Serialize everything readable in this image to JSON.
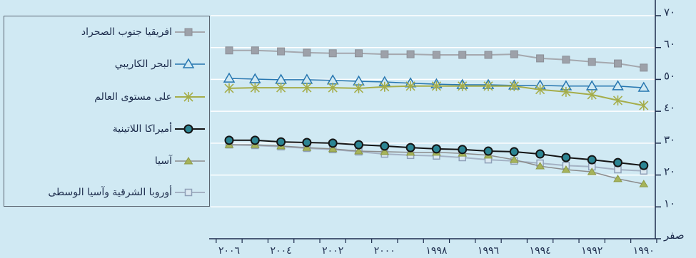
{
  "chart_data": {
    "type": "line",
    "x": [
      2006,
      2005,
      2004,
      2003,
      2002,
      2001,
      2000,
      1999,
      1998,
      1997,
      1996,
      1995,
      1994,
      1993,
      1992,
      1991,
      1990
    ],
    "x_reversed": true,
    "x_tick_labels": [
      {
        "year": 2006,
        "label": "٢٠٠٦"
      },
      {
        "year": 2004,
        "label": "٢٠٠٤"
      },
      {
        "year": 2002,
        "label": "٢٠٠٢"
      },
      {
        "year": 2000,
        "label": "٢٠٠٠"
      },
      {
        "year": 1998,
        "label": "١٩٩٨"
      },
      {
        "year": 1996,
        "label": "١٩٩٦"
      },
      {
        "year": 1994,
        "label": "١٩٩٤"
      },
      {
        "year": 1992,
        "label": "١٩٩٢"
      },
      {
        "year": 1990,
        "label": "١٩٩٠"
      }
    ],
    "ylim": [
      0,
      70
    ],
    "y_ticks": [
      {
        "value": 70,
        "label": "٧٠"
      },
      {
        "value": 60,
        "label": "٦٠"
      },
      {
        "value": 50,
        "label": "٥٠"
      },
      {
        "value": 40,
        "label": "٤٠"
      },
      {
        "value": 30,
        "label": "٣٠"
      },
      {
        "value": 20,
        "label": "٢٠"
      },
      {
        "value": 10,
        "label": "١٠"
      },
      {
        "value": 0,
        "label": "صفر"
      }
    ],
    "grid": true,
    "legend": "left",
    "series": [
      {
        "name": "افريقيا جنوب الصحراد",
        "marker": "square-filled",
        "line_color": "#a5a8ae",
        "marker_fill": "#9da1a9",
        "marker_stroke": "#8b8f97",
        "values": [
          59.1,
          59.1,
          58.8,
          58.4,
          58.2,
          58.2,
          57.9,
          57.9,
          57.7,
          57.7,
          57.7,
          57.9,
          56.6,
          56.2,
          55.5,
          55.0,
          53.7
        ]
      },
      {
        "name": "البحر الكاريبي",
        "marker": "triangle-open",
        "line_color": "#2676b0",
        "marker_fill": "#d0e9f3",
        "marker_stroke": "#2676b0",
        "values": [
          50.3,
          50.1,
          49.9,
          49.9,
          49.7,
          49.4,
          49.2,
          48.8,
          48.5,
          48.3,
          48.3,
          48.1,
          48.1,
          47.9,
          47.9,
          47.9,
          47.4
        ]
      },
      {
        "name": "على مستوى العالم",
        "marker": "asterisk",
        "line_color": "#a5ad4a",
        "marker_fill": "#a5ad4a",
        "marker_stroke": "#a5ad4a",
        "values": [
          47.2,
          47.4,
          47.4,
          47.4,
          47.4,
          47.2,
          47.7,
          47.9,
          47.9,
          47.9,
          47.9,
          47.9,
          46.8,
          46.1,
          45.2,
          43.4,
          41.8
        ]
      },
      {
        "name": "أميراكا اللاتينية",
        "marker": "circle",
        "line_color": "#141414",
        "marker_fill": "#2c8593",
        "marker_stroke": "#141414",
        "values": [
          30.9,
          30.9,
          30.4,
          30.2,
          30.0,
          29.5,
          29.1,
          28.6,
          28.2,
          28.0,
          27.5,
          27.3,
          26.6,
          25.5,
          24.8,
          23.9,
          23.0
        ]
      },
      {
        "name": "آسيا",
        "marker": "triangle-filled",
        "line_color": "#8c8c8c",
        "marker_fill": "#a6b35a",
        "marker_stroke": "#8d9a45",
        "values": [
          29.5,
          29.5,
          29.1,
          28.6,
          28.2,
          27.5,
          27.3,
          27.1,
          27.1,
          26.8,
          26.2,
          24.8,
          22.8,
          21.7,
          21.0,
          18.8,
          17.2
        ]
      },
      {
        "name": "أوروبا الشرقية وآسيا الوسطى",
        "marker": "square-open",
        "line_color": "#a4b2c4",
        "marker_fill": "#dbe8f1",
        "marker_stroke": "#8ea0b8",
        "values": [
          29.5,
          29.3,
          28.9,
          28.4,
          28.0,
          27.3,
          26.6,
          26.2,
          26.0,
          25.5,
          24.8,
          24.4,
          23.7,
          23.0,
          22.6,
          21.7,
          21.3
        ]
      }
    ]
  },
  "colors": {
    "background": "#d0e9f3",
    "grid": "#ffffff",
    "axis": "#1d2c4c",
    "text": "#1d2c4c",
    "legend_border": "#5a6570"
  }
}
